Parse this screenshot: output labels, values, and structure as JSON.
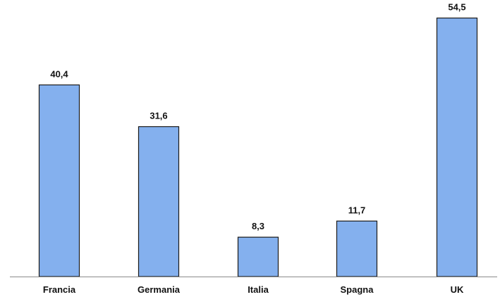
{
  "chart_data": {
    "type": "bar",
    "title": "",
    "xlabel": "",
    "ylabel": "",
    "categories": [
      "Francia",
      "Germania",
      "Italia",
      "Spagna",
      "UK"
    ],
    "values": [
      40.4,
      31.6,
      8.3,
      11.7,
      54.5
    ],
    "value_labels": [
      "40,4",
      "31,6",
      "8,3",
      "11,7",
      "54,5"
    ],
    "ylim": [
      0,
      58
    ],
    "grid": false,
    "legend": "none",
    "bar_color": "#84b0ee",
    "bar_edge_color": "#1a1a1a",
    "axis_color": "#8a8a8a"
  }
}
